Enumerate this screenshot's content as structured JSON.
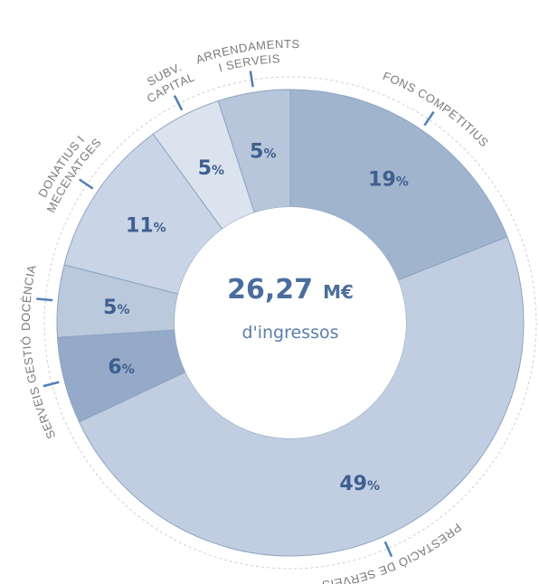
{
  "chart_data": {
    "type": "donut",
    "categories": [
      [
        "FONS COMPETITIUS"
      ],
      [
        "PRESTACIÓ DE SERVEIS"
      ],
      [
        "SERVEIS GESTIÓ"
      ],
      [
        "DOCÈNCIA"
      ],
      [
        "DONATIUS I",
        "MECENATGES"
      ],
      [
        "SUBV.",
        "CAPITAL"
      ],
      [
        "ARRENDAMENTS",
        "I SERVEIS"
      ]
    ],
    "values": [
      19,
      49,
      6,
      5,
      11,
      5,
      5
    ],
    "unit": "%",
    "colors": [
      "#a0b4ce",
      "#c1cee1",
      "#94aac8",
      "#bac9dc",
      "#c9d5e6",
      "#dbe3ef",
      "#b7c6da"
    ],
    "total": {
      "value": 26.27,
      "label": "26,27"
    },
    "total_unit": "M€",
    "total_caption": "d'ingressos"
  }
}
